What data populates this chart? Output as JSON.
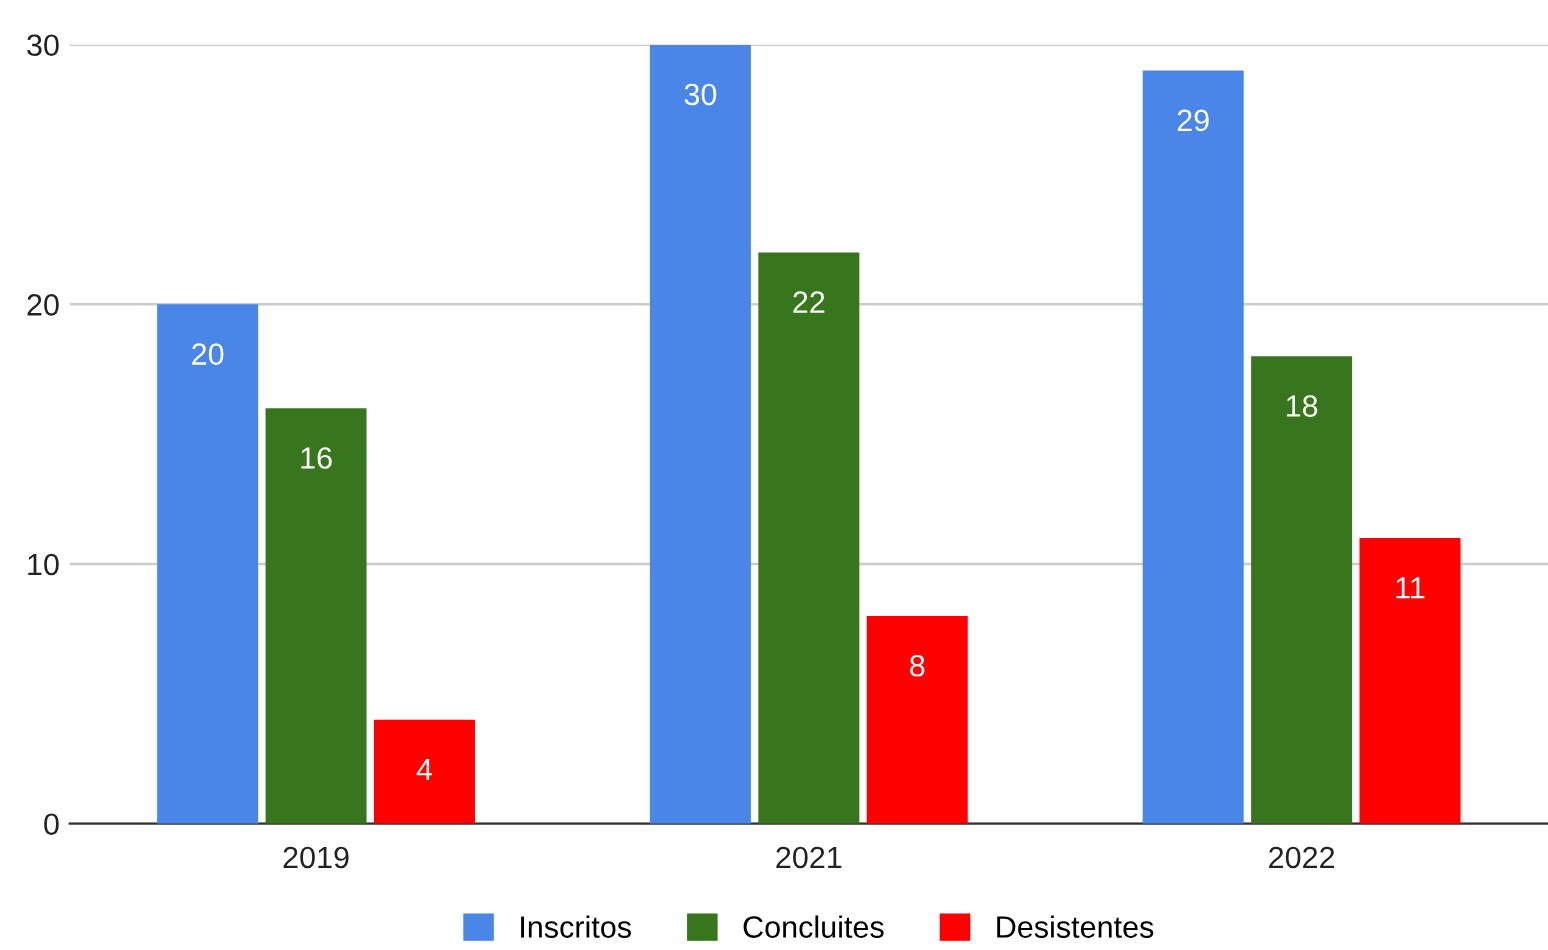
{
  "chart_data": {
    "type": "bar",
    "categories": [
      "2019",
      "2021",
      "2022"
    ],
    "series": [
      {
        "name": "Inscritos",
        "color": "#4a86e8",
        "values": [
          20,
          30,
          29
        ]
      },
      {
        "name": "Concluites",
        "color": "#38761d",
        "values": [
          16,
          22,
          18
        ]
      },
      {
        "name": "Desistentes",
        "color": "#ff0000",
        "values": [
          4,
          8,
          11
        ]
      }
    ],
    "ylim": [
      0,
      30
    ],
    "yticks": [
      0,
      10,
      20,
      30
    ],
    "grid": "y",
    "legend": "bottom",
    "data_labels": true
  }
}
